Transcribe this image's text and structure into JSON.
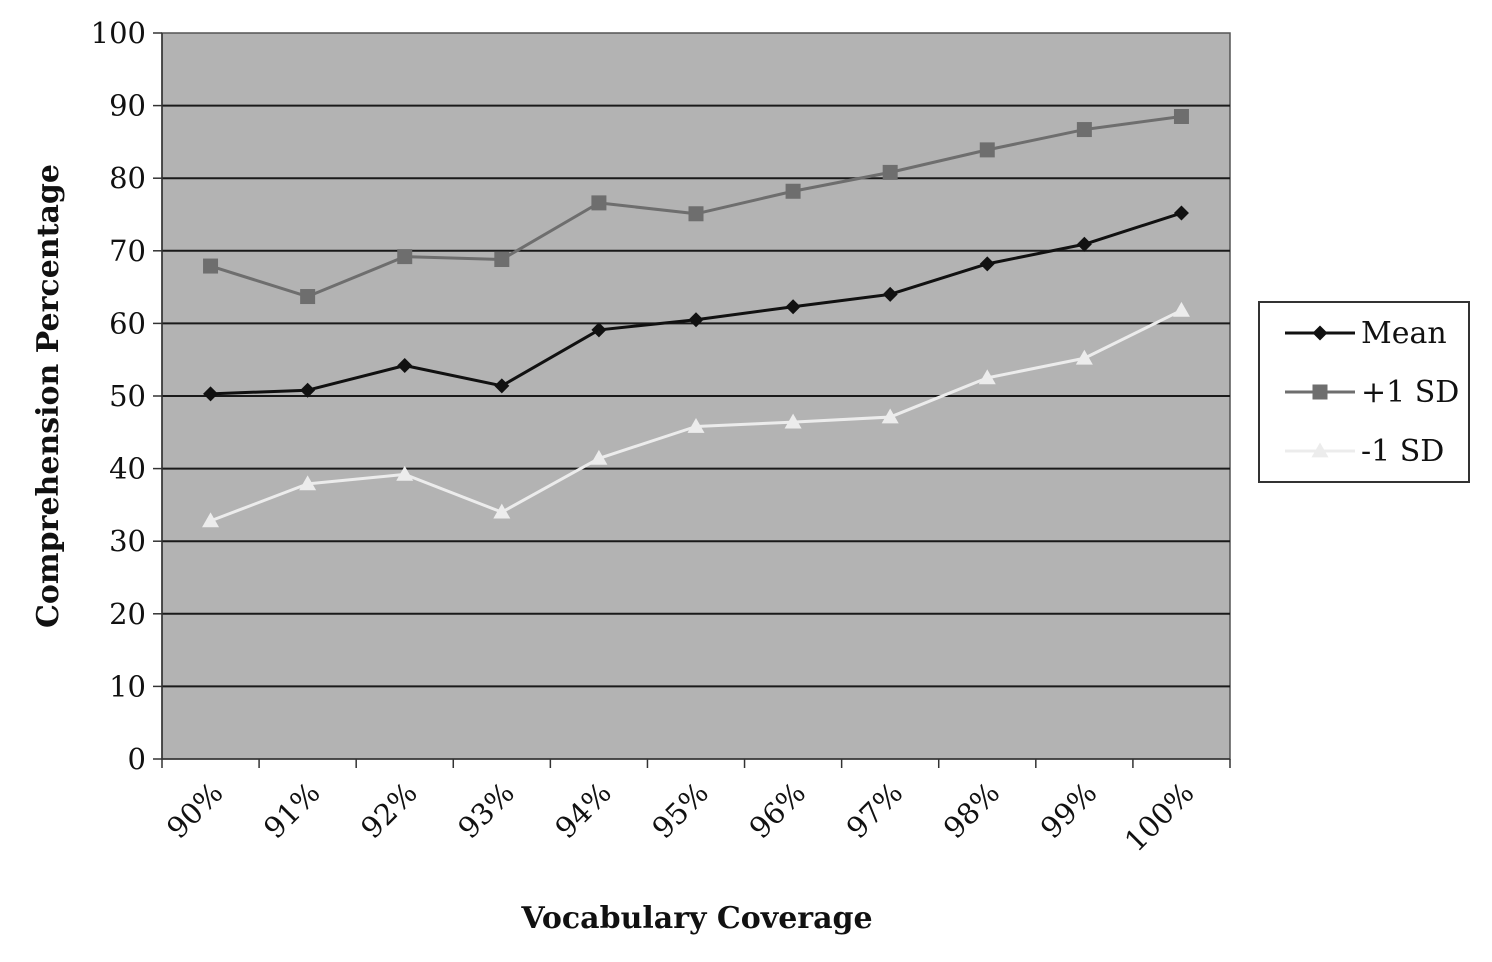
{
  "chart_data": {
    "type": "line",
    "xlabel": "Vocabulary Coverage",
    "ylabel": "Comprehension Percentage",
    "categories": [
      "90%",
      "91%",
      "92%",
      "93%",
      "94%",
      "95%",
      "96%",
      "97%",
      "98%",
      "99%",
      "100%"
    ],
    "ylim": [
      0,
      100
    ],
    "yticks": [
      0,
      10,
      20,
      30,
      40,
      50,
      60,
      70,
      80,
      90,
      100
    ],
    "grid": true,
    "legend_position": "right",
    "plot_background": "#b3b3b3",
    "series": [
      {
        "name": "Mean",
        "marker": "diamond",
        "color": "#111111",
        "values": [
          50.3,
          50.8,
          54.2,
          51.4,
          59.1,
          60.5,
          62.3,
          64.0,
          68.2,
          70.9,
          75.2
        ]
      },
      {
        "name": "+1 SD",
        "marker": "square",
        "color": "#6e6e6e",
        "values": [
          67.9,
          63.7,
          69.2,
          68.8,
          76.6,
          75.1,
          78.2,
          80.8,
          83.9,
          86.7,
          88.5
        ]
      },
      {
        "name": "-1 SD",
        "marker": "triangle",
        "color": "#ececec",
        "values": [
          32.8,
          37.9,
          39.2,
          34.0,
          41.4,
          45.8,
          46.4,
          47.1,
          52.5,
          55.2,
          61.8
        ]
      }
    ]
  }
}
